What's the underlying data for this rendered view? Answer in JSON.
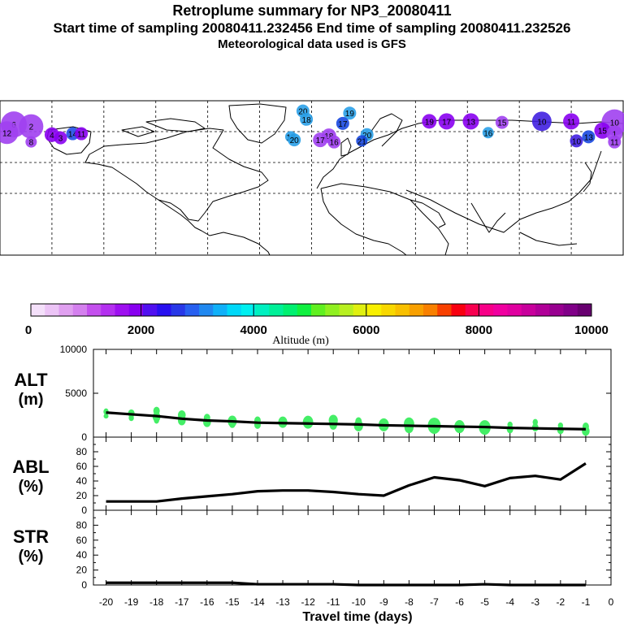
{
  "header": {
    "title": "Retroplume summary for NP3_20080411",
    "sampling": "Start time of sampling 20080411.232456     End time of sampling 20080411.232526",
    "met": "Meteorological data used is GFS"
  },
  "colors": {
    "plume": "#44ee66",
    "line": "#000000"
  },
  "map": {
    "markers": [
      {
        "label": "20",
        "lon": -5,
        "lat": 80,
        "c": "#2aa0e8",
        "r": 8
      },
      {
        "label": "19",
        "lon": 22,
        "lat": 78,
        "c": "#2aa0e8",
        "r": 8
      },
      {
        "label": "18",
        "lon": -3,
        "lat": 72,
        "c": "#2aa0e8",
        "r": 8
      },
      {
        "label": "17",
        "lon": 18,
        "lat": 68,
        "c": "#1848e0",
        "r": 8
      },
      {
        "label": "16",
        "lon": -12,
        "lat": 55,
        "c": "#2aa0e8",
        "r": 7
      },
      {
        "label": "20",
        "lon": -10,
        "lat": 52,
        "c": "#2aa0e8",
        "r": 8
      },
      {
        "label": "18",
        "lon": 10,
        "lat": 56,
        "c": "#a040f0",
        "r": 9
      },
      {
        "label": "17",
        "lon": 5,
        "lat": 52,
        "c": "#a040f0",
        "r": 9
      },
      {
        "label": "16",
        "lon": 13,
        "lat": 50,
        "c": "#a040f0",
        "r": 8
      },
      {
        "label": "20",
        "lon": 32,
        "lat": 57,
        "c": "#2aa0e8",
        "r": 8
      },
      {
        "label": "21",
        "lon": 29,
        "lat": 51,
        "c": "#1848e0",
        "r": 7
      },
      {
        "label": "19",
        "lon": 68,
        "lat": 70,
        "c": "#8800f0",
        "r": 9
      },
      {
        "label": "17",
        "lon": 78,
        "lat": 70,
        "c": "#8800f0",
        "r": 10
      },
      {
        "label": "13",
        "lon": 92,
        "lat": 70,
        "c": "#8800f0",
        "r": 10
      },
      {
        "label": "15",
        "lon": 110,
        "lat": 69,
        "c": "#a040f0",
        "r": 8
      },
      {
        "label": "16",
        "lon": 102,
        "lat": 59,
        "c": "#2aa0e8",
        "r": 7
      },
      {
        "label": "10",
        "lon": 133,
        "lat": 70,
        "c": "#4020e0",
        "r": 12
      },
      {
        "label": "11",
        "lon": 150,
        "lat": 70,
        "c": "#8800f0",
        "r": 10
      },
      {
        "label": "10",
        "lon": 175,
        "lat": 69,
        "c": "#a040f0",
        "r": 16
      },
      {
        "label": "6",
        "lon": -172,
        "lat": 67,
        "c": "#a040f0",
        "r": 16
      },
      {
        "label": "2",
        "lon": -162,
        "lat": 65,
        "c": "#a040f0",
        "r": 15
      },
      {
        "label": "12",
        "lon": -176,
        "lat": 59,
        "c": "#a040f0",
        "r": 14
      },
      {
        "label": "4",
        "lon": -150,
        "lat": 57,
        "c": "#8800f0",
        "r": 9
      },
      {
        "label": "3",
        "lon": -145,
        "lat": 54,
        "c": "#8800f0",
        "r": 8
      },
      {
        "label": "14",
        "lon": -138,
        "lat": 58,
        "c": "#2050e8",
        "r": 8
      },
      {
        "label": "11",
        "lon": -133,
        "lat": 58,
        "c": "#8800f0",
        "r": 8
      },
      {
        "label": "15",
        "lon": 168,
        "lat": 61,
        "c": "#8800f0",
        "r": 10
      },
      {
        "label": "1",
        "lon": 175,
        "lat": 58,
        "c": "#a040f0",
        "r": 10
      },
      {
        "label": "13",
        "lon": 160,
        "lat": 55,
        "c": "#1848e0",
        "r": 8
      },
      {
        "label": "11",
        "lon": 175,
        "lat": 50,
        "c": "#a040f0",
        "r": 8
      },
      {
        "label": "10",
        "lon": 153,
        "lat": 51,
        "c": "#4020e0",
        "r": 8
      },
      {
        "label": "8",
        "lon": -162,
        "lat": 50,
        "c": "#a040f0",
        "r": 7
      }
    ]
  },
  "colorbar": {
    "ticks": [
      "0",
      "2000",
      "4000",
      "6000",
      "8000",
      "10000"
    ],
    "label": "Altitude (m)",
    "colors": [
      "#f4e0fa",
      "#ecc4f6",
      "#e0a0f0",
      "#d480ee",
      "#c450ee",
      "#b430f0",
      "#9e10f0",
      "#8800f0",
      "#5010f0",
      "#2810f0",
      "#2838e8",
      "#2860f0",
      "#2088f0",
      "#10b0f8",
      "#00d8f8",
      "#00f0f0",
      "#00f0c0",
      "#00f098",
      "#00f070",
      "#10f040",
      "#60f020",
      "#90f020",
      "#b8f020",
      "#e0f010",
      "#f8f000",
      "#f8d800",
      "#f8c000",
      "#f8a000",
      "#f88000",
      "#f84000",
      "#f80010",
      "#f80050",
      "#f80088",
      "#f000a0",
      "#e000a0",
      "#c8009c",
      "#b00098",
      "#980090",
      "#800088",
      "#680070"
    ]
  },
  "chart_data": [
    {
      "type": "line",
      "title": "ALT (m)",
      "panel_label_1": "ALT",
      "panel_label_2": "(m)",
      "ylim": [
        0,
        10000
      ],
      "yticks": [
        "0",
        "5000",
        "10000"
      ],
      "x": [
        -20,
        -19,
        -18,
        -17,
        -16,
        -15,
        -14,
        -13,
        -12,
        -11,
        -10,
        -9,
        -8,
        -7,
        -6,
        -5,
        -4,
        -3,
        -2,
        -1
      ],
      "line": [
        2800,
        2600,
        2400,
        2100,
        1900,
        1800,
        1650,
        1600,
        1550,
        1500,
        1450,
        1350,
        1300,
        1250,
        1200,
        1150,
        1050,
        1000,
        950,
        900
      ],
      "scatter": [
        {
          "x": -20,
          "y": 2900,
          "s": 4
        },
        {
          "x": -20,
          "y": 2400,
          "s": 3
        },
        {
          "x": -19,
          "y": 2700,
          "s": 5
        },
        {
          "x": -19,
          "y": 2200,
          "s": 4
        },
        {
          "x": -18,
          "y": 3000,
          "s": 5
        },
        {
          "x": -18,
          "y": 2300,
          "s": 6
        },
        {
          "x": -18,
          "y": 1900,
          "s": 4
        },
        {
          "x": -17,
          "y": 2500,
          "s": 6
        },
        {
          "x": -17,
          "y": 1900,
          "s": 6
        },
        {
          "x": -16,
          "y": 2200,
          "s": 5
        },
        {
          "x": -16,
          "y": 1700,
          "s": 6
        },
        {
          "x": -15,
          "y": 1800,
          "s": 7
        },
        {
          "x": -15,
          "y": 1500,
          "s": 5
        },
        {
          "x": -14,
          "y": 1900,
          "s": 5
        },
        {
          "x": -14,
          "y": 1400,
          "s": 5
        },
        {
          "x": -13,
          "y": 1700,
          "s": 7
        },
        {
          "x": -12,
          "y": 1700,
          "s": 8
        },
        {
          "x": -11,
          "y": 1900,
          "s": 7
        },
        {
          "x": -11,
          "y": 1400,
          "s": 6
        },
        {
          "x": -10,
          "y": 1800,
          "s": 5
        },
        {
          "x": -10,
          "y": 1300,
          "s": 7
        },
        {
          "x": -9,
          "y": 1400,
          "s": 8
        },
        {
          "x": -8,
          "y": 1500,
          "s": 8
        },
        {
          "x": -8,
          "y": 1100,
          "s": 7
        },
        {
          "x": -7,
          "y": 1300,
          "s": 10
        },
        {
          "x": -6,
          "y": 1200,
          "s": 8
        },
        {
          "x": -5,
          "y": 1100,
          "s": 9
        },
        {
          "x": -4,
          "y": 1400,
          "s": 4
        },
        {
          "x": -4,
          "y": 900,
          "s": 5
        },
        {
          "x": -3,
          "y": 1700,
          "s": 4
        },
        {
          "x": -3,
          "y": 1100,
          "s": 5
        },
        {
          "x": -2,
          "y": 1300,
          "s": 4
        },
        {
          "x": -2,
          "y": 800,
          "s": 5
        },
        {
          "x": -1,
          "y": 1200,
          "s": 5
        },
        {
          "x": -1,
          "y": 700,
          "s": 6
        }
      ]
    },
    {
      "type": "line",
      "title": "ABL (%)",
      "panel_label_1": "ABL",
      "panel_label_2": "(%)",
      "ylim": [
        0,
        100
      ],
      "yticks": [
        "0",
        "20",
        "40",
        "60",
        "80"
      ],
      "x": [
        -20,
        -19,
        -18,
        -17,
        -16,
        -15,
        -14,
        -13,
        -12,
        -11,
        -10,
        -9,
        -8,
        -7,
        -6,
        -5,
        -4,
        -3,
        -2,
        -1
      ],
      "line": [
        12,
        12,
        12,
        16,
        19,
        22,
        26,
        27,
        27,
        25,
        22,
        20,
        34,
        45,
        41,
        33,
        44,
        47,
        42,
        64
      ]
    },
    {
      "type": "line",
      "title": "STR (%)",
      "panel_label_1": "STR",
      "panel_label_2": "(%)",
      "ylim": [
        0,
        100
      ],
      "yticks": [
        "0",
        "20",
        "40",
        "60",
        "80"
      ],
      "xlabel": "Travel time (days)",
      "xticks": [
        "-20",
        "-19",
        "-18",
        "-17",
        "-16",
        "-15",
        "-14",
        "-13",
        "-12",
        "-11",
        "-10",
        "-9",
        "-8",
        "-7",
        "-6",
        "-5",
        "-4",
        "-3",
        "-2",
        "-1",
        "0"
      ],
      "x": [
        -20,
        -19,
        -18,
        -17,
        -16,
        -15,
        -14,
        -13,
        -12,
        -11,
        -10,
        -9,
        -8,
        -7,
        -6,
        -5,
        -4,
        -3,
        -2,
        -1
      ],
      "line": [
        3,
        3,
        3,
        3,
        3,
        3,
        1,
        1,
        1,
        1,
        0,
        0,
        0,
        0,
        0,
        1,
        0,
        0,
        0,
        0
      ]
    }
  ]
}
